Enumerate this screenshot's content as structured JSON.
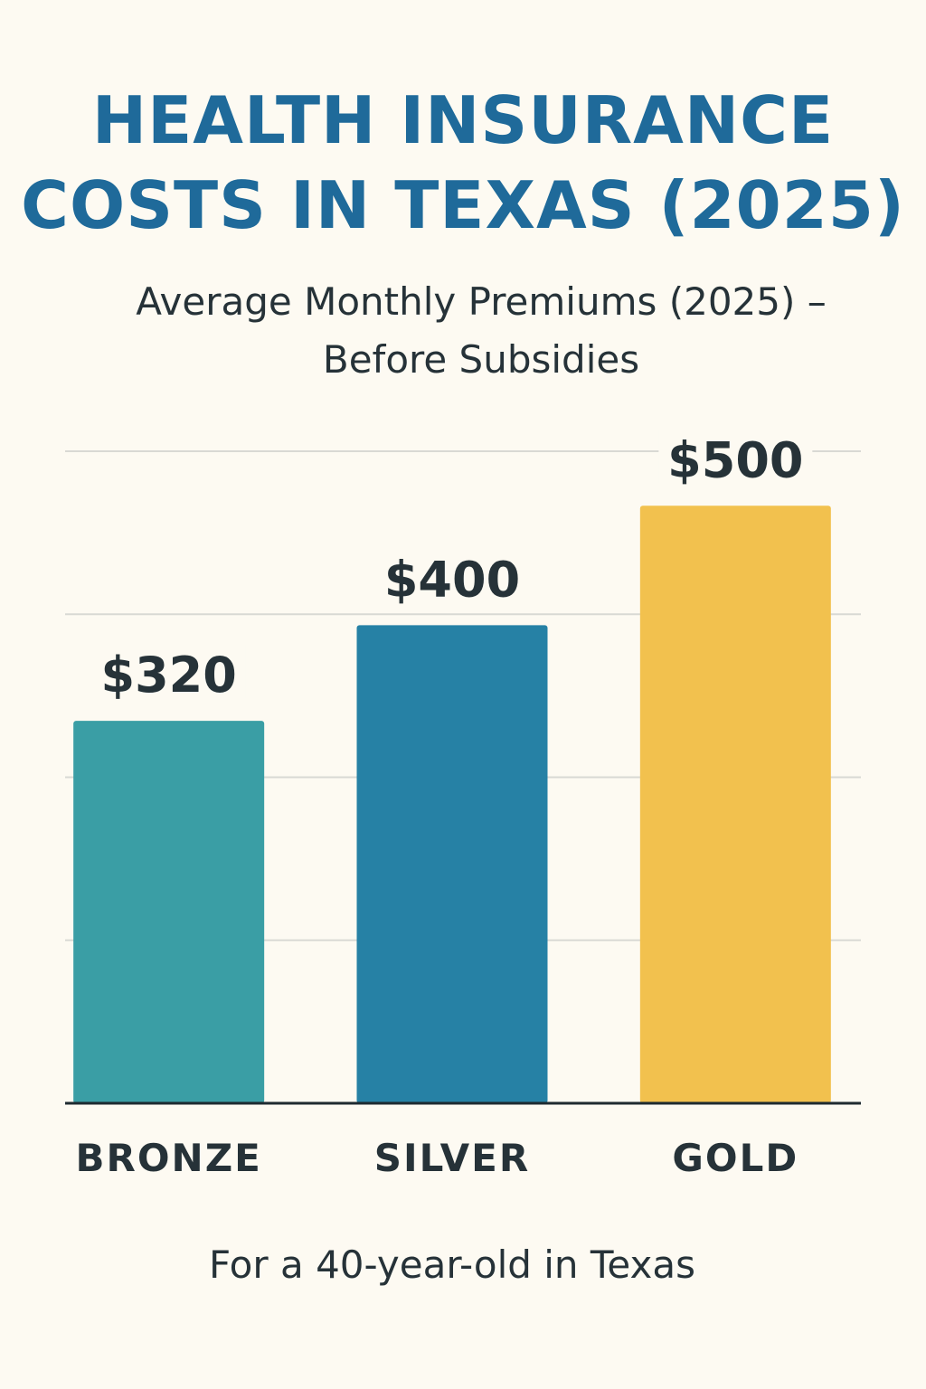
{
  "title_line1": "HEALTH INSURANCE",
  "title_line2": "COSTS IN TEXAS (2025)",
  "subtitle_line1": "Average Monthly Premiums (2025) –",
  "subtitle_line2": "Before Subsidies",
  "footnote": "For a 40-year-old in Texas",
  "colors": {
    "title": "#1f6a9a",
    "text": "#263238",
    "background": "#fdfaf2"
  },
  "chart_data": {
    "type": "bar",
    "categories": [
      "BRONZE",
      "SILVER",
      "GOLD"
    ],
    "values": [
      320,
      400,
      500
    ],
    "data_labels": [
      "$320",
      "$400",
      "$500"
    ],
    "colors": [
      "#3a9ea5",
      "#2681a5",
      "#f2c14e"
    ],
    "title": "Average Monthly Premiums (2025) – Before Subsidies",
    "xlabel": "",
    "ylabel": "",
    "ylim": [
      0,
      560
    ],
    "grid": true,
    "legend": "none"
  }
}
